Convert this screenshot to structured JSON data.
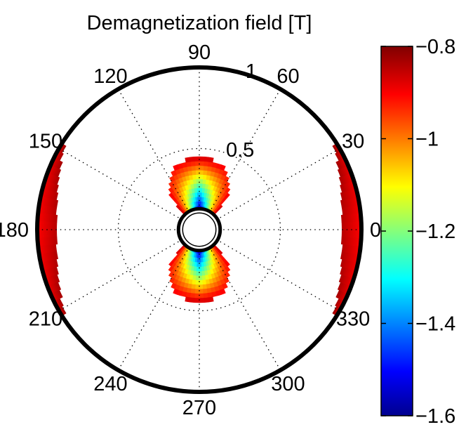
{
  "chart_data": {
    "type": "polar",
    "title": "Demagnetization field [T]",
    "angular_ticks": [
      {
        "angle": 0,
        "label": "0"
      },
      {
        "angle": 30,
        "label": "30"
      },
      {
        "angle": 60,
        "label": "60"
      },
      {
        "angle": 90,
        "label": "90"
      },
      {
        "angle": 120,
        "label": "120"
      },
      {
        "angle": 150,
        "label": "150"
      },
      {
        "angle": 180,
        "label": "180"
      },
      {
        "angle": 210,
        "label": "210"
      },
      {
        "angle": 240,
        "label": "240"
      },
      {
        "angle": 270,
        "label": "270"
      },
      {
        "angle": 300,
        "label": "300"
      },
      {
        "angle": 330,
        "label": "330"
      }
    ],
    "radial_ticks": [
      {
        "value": 0.5,
        "label": "0.5"
      },
      {
        "value": 1,
        "label": "1"
      }
    ],
    "rlim": [
      0,
      1
    ],
    "inner_hole_radius": 0.12,
    "colorbar": {
      "colormap": "jet",
      "range": [
        -1.6,
        -0.8
      ],
      "ticks": [
        {
          "value": -0.8,
          "label": "−0.8"
        },
        {
          "value": -1.0,
          "label": "−1"
        },
        {
          "value": -1.2,
          "label": "−1.2"
        },
        {
          "value": -1.4,
          "label": "−1.4"
        },
        {
          "value": -1.6,
          "label": "−1.6"
        }
      ]
    },
    "regions": [
      {
        "name": "right-lobe",
        "theta_range": [
          -35,
          35
        ],
        "r_range": [
          0.88,
          1.0
        ],
        "value_range": [
          -0.9,
          -0.82
        ]
      },
      {
        "name": "left-lobe",
        "theta_range": [
          145,
          215
        ],
        "r_range": [
          0.88,
          1.0
        ],
        "value_range": [
          -0.9,
          -0.82
        ]
      },
      {
        "name": "top-lobe",
        "theta_range": [
          45,
          135
        ],
        "r_range": [
          0.12,
          0.45
        ],
        "value_range": [
          -1.58,
          -0.85
        ]
      },
      {
        "name": "bottom-lobe",
        "theta_range": [
          225,
          315
        ],
        "r_range": [
          0.12,
          0.45
        ],
        "value_range": [
          -1.58,
          -0.85
        ]
      }
    ]
  }
}
